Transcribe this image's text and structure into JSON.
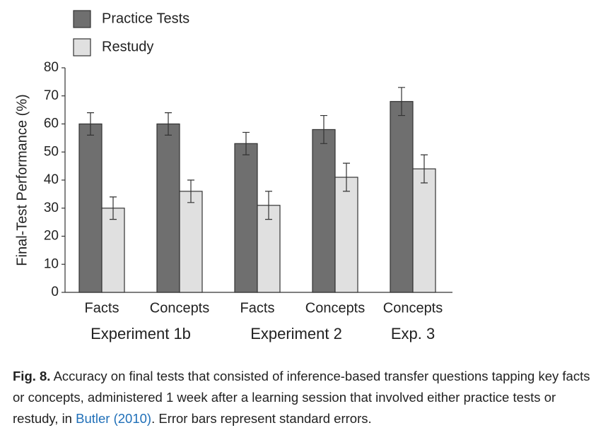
{
  "chart_data": {
    "type": "bar",
    "y_label": "Final-Test Performance (%)",
    "groups": [
      {
        "name": "Experiment 1b",
        "categories": [
          "Facts",
          "Concepts"
        ]
      },
      {
        "name": "Experiment 2",
        "categories": [
          "Facts",
          "Concepts"
        ]
      },
      {
        "name": "Exp. 3",
        "categories": [
          "Concepts"
        ]
      }
    ],
    "series": [
      {
        "name": "Practice Tests",
        "color": "#6f6f6f",
        "values": [
          60,
          60,
          53,
          58,
          68
        ],
        "errors": [
          4,
          4,
          4,
          5,
          5
        ]
      },
      {
        "name": "Restudy",
        "color": "#e0e0e0",
        "values": [
          30,
          36,
          31,
          41,
          44
        ],
        "errors": [
          4,
          4,
          5,
          5,
          5
        ]
      }
    ],
    "ylim": [
      0,
      80
    ],
    "yticks": [
      0,
      10,
      20,
      30,
      40,
      50,
      60,
      70,
      80
    ],
    "legend": "top-left"
  },
  "caption": {
    "label": "Fig. 8.",
    "text_before": " Accuracy on final tests that consisted of inference-based transfer questions tapping key facts or concepts, administered 1 week after a learning session that involved either practice tests or restudy, in ",
    "link": "Butler (2010)",
    "text_after": ". Error bars represent standard errors."
  }
}
